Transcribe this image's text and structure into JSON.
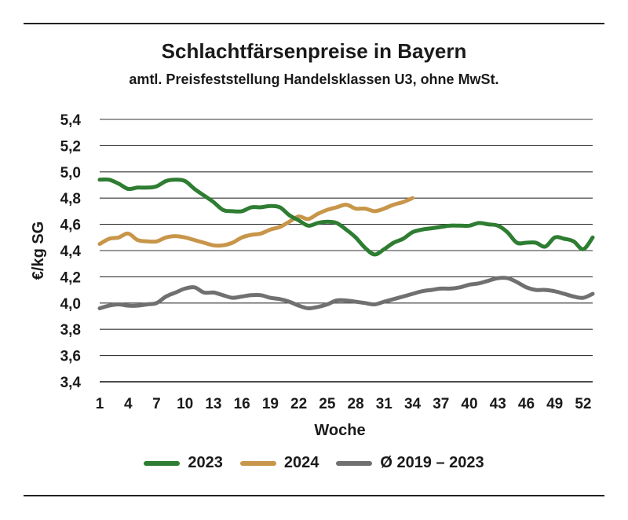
{
  "title": "Schlachtfärsenpreise in Bayern",
  "subtitle": "amtl. Preisfeststellung Handelsklassen U3, ohne MwSt.",
  "chart_data": {
    "type": "line",
    "xlabel": "Woche",
    "ylabel": "€/kg SG",
    "x_ticks": [
      1,
      4,
      7,
      10,
      13,
      16,
      19,
      22,
      25,
      28,
      31,
      34,
      37,
      40,
      43,
      46,
      49,
      52
    ],
    "xlim": [
      1,
      53
    ],
    "ylim": [
      3.4,
      5.4
    ],
    "y_ticks": [
      3.4,
      3.6,
      3.8,
      4.0,
      4.2,
      4.4,
      4.6,
      4.8,
      5.0,
      5.2,
      5.4
    ],
    "y_tick_labels": [
      "3,4",
      "3,6",
      "3,8",
      "4,0",
      "4,2",
      "4,4",
      "4,6",
      "4,8",
      "5,0",
      "5,2",
      "5,4"
    ],
    "grid": true,
    "legend_position": "bottom",
    "series": [
      {
        "name": "2023",
        "color": "#2e7d32",
        "x": [
          1,
          2,
          3,
          4,
          5,
          6,
          7,
          8,
          9,
          10,
          11,
          12,
          13,
          14,
          15,
          16,
          17,
          18,
          19,
          20,
          21,
          22,
          23,
          24,
          25,
          26,
          27,
          28,
          29,
          30,
          31,
          32,
          33,
          34,
          35,
          36,
          37,
          38,
          39,
          40,
          41,
          42,
          43,
          44,
          45,
          46,
          47,
          48,
          49,
          50,
          51,
          52,
          53
        ],
        "y": [
          4.94,
          4.94,
          4.91,
          4.87,
          4.88,
          4.88,
          4.89,
          4.93,
          4.94,
          4.93,
          4.87,
          4.82,
          4.77,
          4.71,
          4.7,
          4.7,
          4.73,
          4.73,
          4.74,
          4.73,
          4.67,
          4.63,
          4.59,
          4.61,
          4.62,
          4.61,
          4.56,
          4.5,
          4.42,
          4.37,
          4.41,
          4.46,
          4.49,
          4.54,
          4.56,
          4.57,
          4.58,
          4.59,
          4.59,
          4.59,
          4.61,
          4.6,
          4.59,
          4.54,
          4.46,
          4.46,
          4.46,
          4.43,
          4.5,
          4.49,
          4.47,
          4.41,
          4.5
        ]
      },
      {
        "name": "2024",
        "color": "#c8964a",
        "x": [
          1,
          2,
          3,
          4,
          5,
          6,
          7,
          8,
          9,
          10,
          11,
          12,
          13,
          14,
          15,
          16,
          17,
          18,
          19,
          20,
          21,
          22,
          23,
          24,
          25,
          26,
          27,
          28,
          29,
          30,
          31,
          32,
          33,
          34
        ],
        "y": [
          4.45,
          4.49,
          4.5,
          4.53,
          4.48,
          4.47,
          4.47,
          4.5,
          4.51,
          4.5,
          4.48,
          4.46,
          4.44,
          4.44,
          4.46,
          4.5,
          4.52,
          4.53,
          4.56,
          4.58,
          4.62,
          4.66,
          4.64,
          4.68,
          4.71,
          4.73,
          4.75,
          4.72,
          4.72,
          4.7,
          4.72,
          4.75,
          4.77,
          4.8
        ]
      },
      {
        "name": "Ø 2019 – 2023",
        "color": "#707070",
        "x": [
          1,
          2,
          3,
          4,
          5,
          6,
          7,
          8,
          9,
          10,
          11,
          12,
          13,
          14,
          15,
          16,
          17,
          18,
          19,
          20,
          21,
          22,
          23,
          24,
          25,
          26,
          27,
          28,
          29,
          30,
          31,
          32,
          33,
          34,
          35,
          36,
          37,
          38,
          39,
          40,
          41,
          42,
          43,
          44,
          45,
          46,
          47,
          48,
          49,
          50,
          51,
          52,
          53
        ],
        "y": [
          3.96,
          3.98,
          3.99,
          3.98,
          3.98,
          3.99,
          4.0,
          4.05,
          4.08,
          4.11,
          4.12,
          4.08,
          4.08,
          4.06,
          4.04,
          4.05,
          4.06,
          4.06,
          4.04,
          4.03,
          4.01,
          3.98,
          3.96,
          3.97,
          3.99,
          4.02,
          4.02,
          4.01,
          4.0,
          3.99,
          4.01,
          4.03,
          4.05,
          4.07,
          4.09,
          4.1,
          4.11,
          4.11,
          4.12,
          4.14,
          4.15,
          4.17,
          4.19,
          4.19,
          4.16,
          4.12,
          4.1,
          4.1,
          4.09,
          4.07,
          4.05,
          4.04,
          4.07
        ]
      }
    ]
  }
}
